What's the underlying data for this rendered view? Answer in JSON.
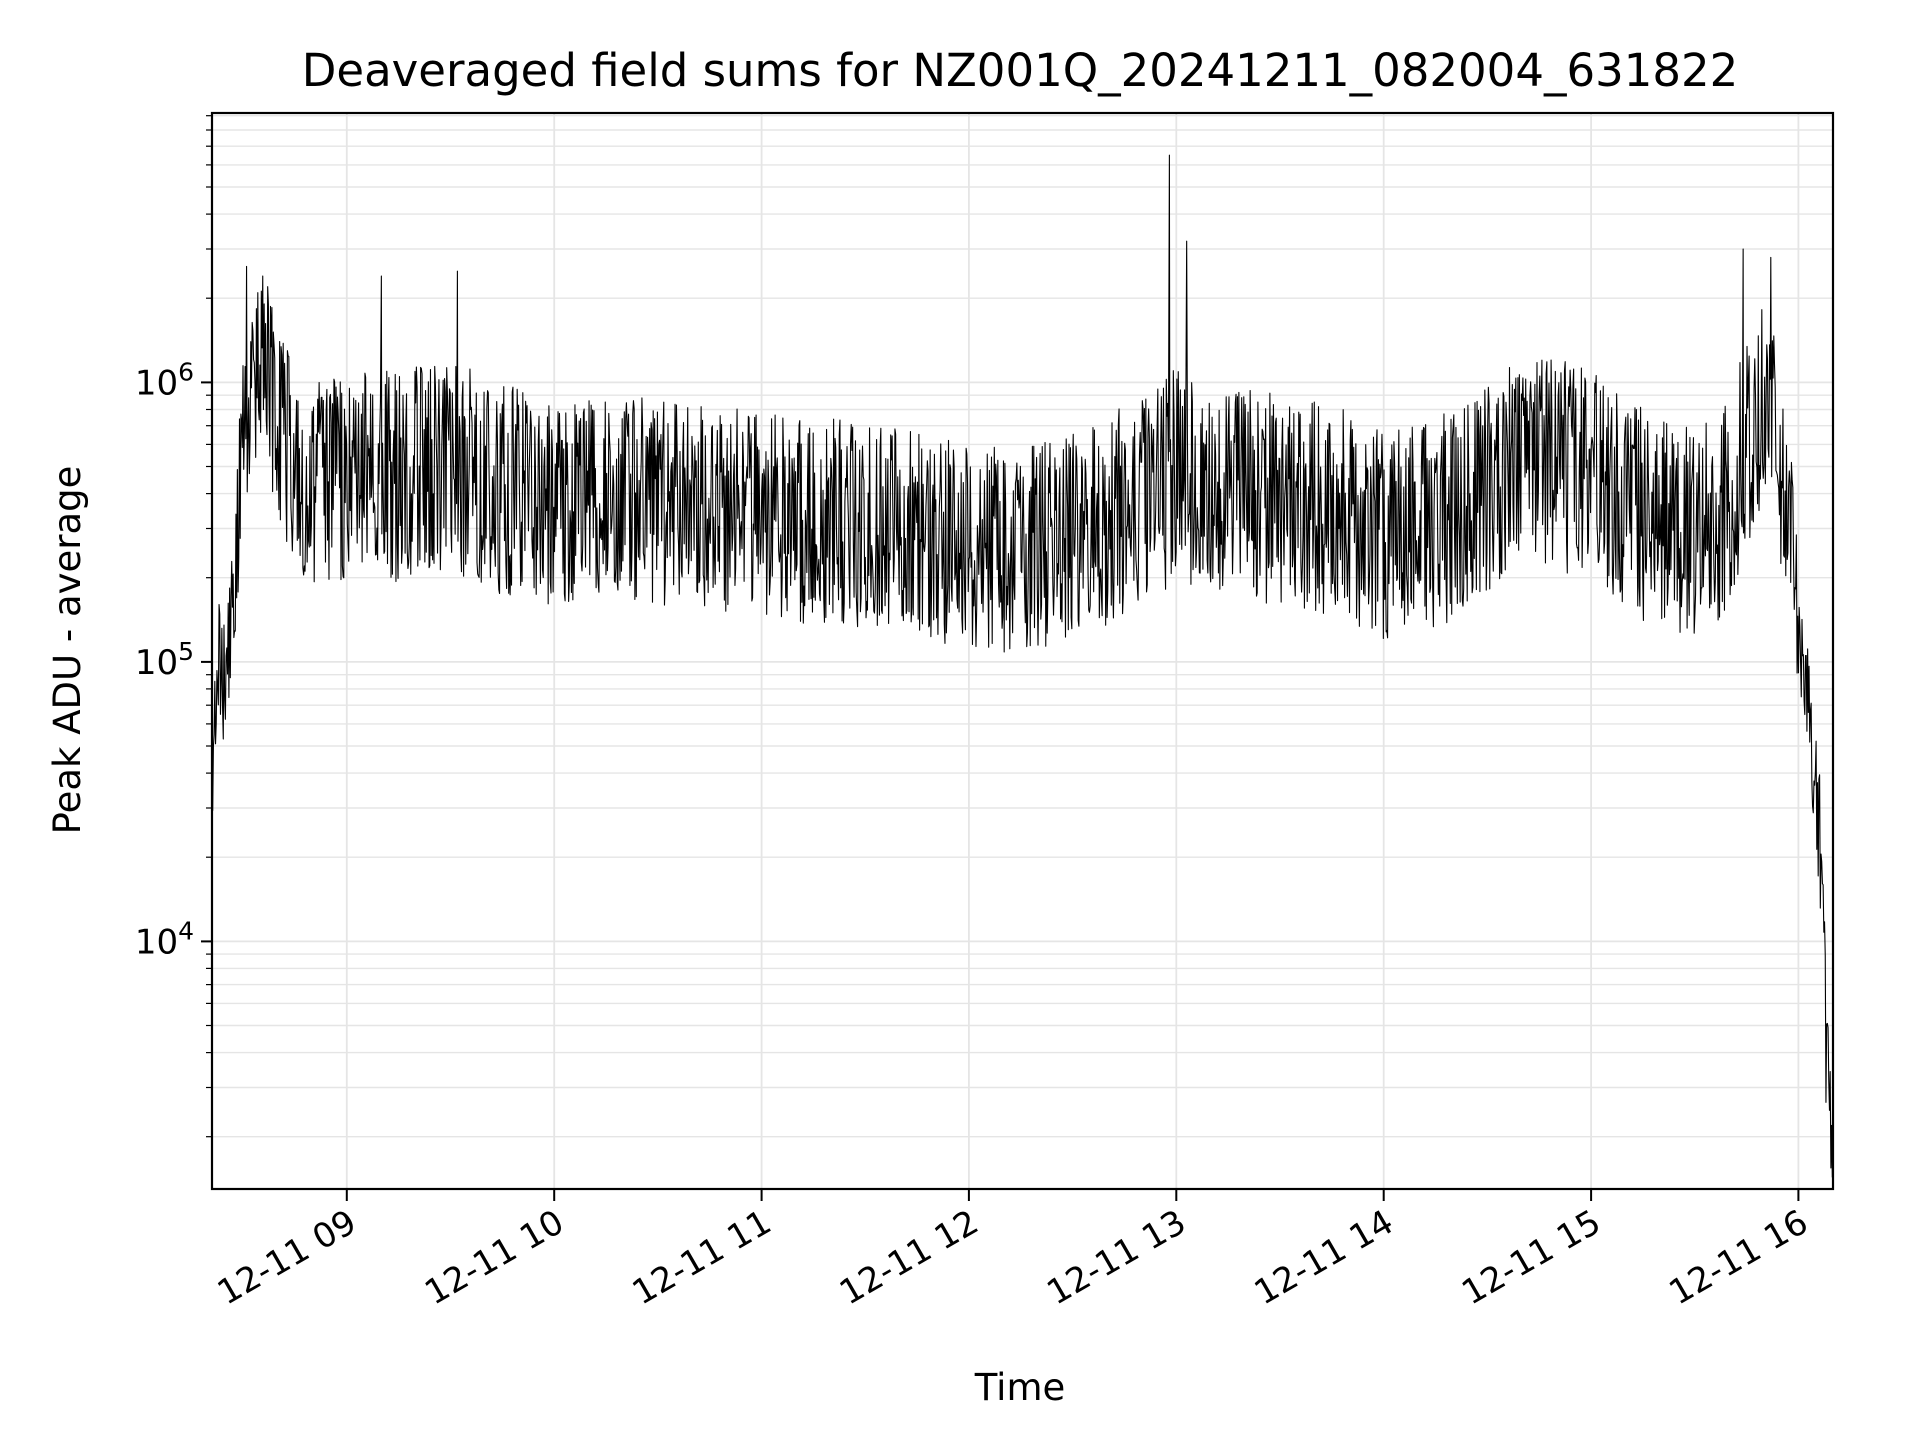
{
  "chart_data": {
    "type": "line",
    "title": "Deaveraged field sums for NZ001Q_20241211_082004_631822",
    "xlabel": "Time",
    "ylabel": "Peak ADU - average",
    "yscale": "log",
    "ylim": [
      1300,
      9200000
    ],
    "xlim": [
      "2024-12-11 08:21",
      "2024-12-11 16:10"
    ],
    "grid": true,
    "line_color": "#000000",
    "grid_color": "#e5e5e5",
    "x_ticks": [
      {
        "value": "2024-12-11 09:00",
        "label": "12-11 09"
      },
      {
        "value": "2024-12-11 10:00",
        "label": "12-11 10"
      },
      {
        "value": "2024-12-11 11:00",
        "label": "12-11 11"
      },
      {
        "value": "2024-12-11 12:00",
        "label": "12-11 12"
      },
      {
        "value": "2024-12-11 13:00",
        "label": "12-11 13"
      },
      {
        "value": "2024-12-11 14:00",
        "label": "12-11 14"
      },
      {
        "value": "2024-12-11 15:00",
        "label": "12-11 15"
      },
      {
        "value": "2024-12-11 16:00",
        "label": "12-11 16"
      }
    ],
    "y_ticks": [
      {
        "value": 10000,
        "base": "10",
        "exp": "4"
      },
      {
        "value": 100000,
        "base": "10",
        "exp": "5"
      },
      {
        "value": 1000000,
        "base": "10",
        "exp": "6"
      }
    ],
    "series": [
      {
        "x": [
          "2024-12-11 08:21",
          "2024-12-11 08:23",
          "2024-12-11 08:25",
          "2024-12-11 08:27",
          "2024-12-11 08:30",
          "2024-12-11 08:33",
          "2024-12-11 08:36",
          "2024-12-11 08:40",
          "2024-12-11 08:45",
          "2024-12-11 08:50",
          "2024-12-11 09:00",
          "2024-12-11 09:15",
          "2024-12-11 09:30",
          "2024-12-11 09:45",
          "2024-12-11 10:00",
          "2024-12-11 10:15",
          "2024-12-11 10:30",
          "2024-12-11 10:45",
          "2024-12-11 11:00",
          "2024-12-11 11:15",
          "2024-12-11 11:30",
          "2024-12-11 11:45",
          "2024-12-11 12:00",
          "2024-12-11 12:15",
          "2024-12-11 12:30",
          "2024-12-11 12:45",
          "2024-12-11 13:00",
          "2024-12-11 13:15",
          "2024-12-11 13:30",
          "2024-12-11 13:45",
          "2024-12-11 14:00",
          "2024-12-11 14:15",
          "2024-12-11 14:30",
          "2024-12-11 14:45",
          "2024-12-11 15:00",
          "2024-12-11 15:15",
          "2024-12-11 15:30",
          "2024-12-11 15:40",
          "2024-12-11 15:45",
          "2024-12-11 15:50",
          "2024-12-11 15:55",
          "2024-12-11 15:58",
          "2024-12-11 16:00",
          "2024-12-11 16:03",
          "2024-12-11 16:06",
          "2024-12-11 16:08",
          "2024-12-11 16:10"
        ],
        "y": [
          40000,
          100000,
          80000,
          150000,
          700000,
          1100000,
          1300000,
          800000,
          550000,
          450000,
          450000,
          480000,
          520000,
          430000,
          380000,
          420000,
          400000,
          380000,
          360000,
          340000,
          330000,
          300000,
          280000,
          260000,
          300000,
          360000,
          480000,
          420000,
          380000,
          350000,
          300000,
          320000,
          450000,
          560000,
          480000,
          350000,
          300000,
          380000,
          650000,
          900000,
          500000,
          350000,
          120000,
          70000,
          30000,
          5000,
          2000
        ],
        "lo_env": [
          0.6,
          0.6,
          0.6,
          0.6,
          0.45,
          0.4,
          0.4,
          0.4,
          0.4,
          0.4,
          0.4,
          0.4,
          0.4,
          0.4,
          0.42,
          0.42,
          0.4,
          0.4,
          0.4,
          0.4,
          0.4,
          0.4,
          0.4,
          0.4,
          0.4,
          0.4,
          0.4,
          0.4,
          0.4,
          0.4,
          0.4,
          0.4,
          0.4,
          0.4,
          0.4,
          0.4,
          0.4,
          0.4,
          0.4,
          0.4,
          0.4,
          0.5,
          0.6,
          0.6,
          0.5,
          0.5,
          0.6
        ],
        "hi_env": [
          1.7,
          1.8,
          1.8,
          1.8,
          2.0,
          2.0,
          2.0,
          2.2,
          2.2,
          2.2,
          2.4,
          2.4,
          2.4,
          2.4,
          2.2,
          2.2,
          2.2,
          2.2,
          2.2,
          2.2,
          2.2,
          2.2,
          2.2,
          2.2,
          2.2,
          2.3,
          2.4,
          2.4,
          2.4,
          2.4,
          2.3,
          2.3,
          2.3,
          2.3,
          2.3,
          2.3,
          2.3,
          2.4,
          2.4,
          2.4,
          2.2,
          2.0,
          1.8,
          1.6,
          1.6,
          1.6,
          1.5
        ]
      }
    ],
    "spikes": [
      {
        "x": "2024-12-11 12:58",
        "y": 6500000
      },
      {
        "x": "2024-12-11 13:03",
        "y": 3200000
      },
      {
        "x": "2024-12-11 15:44",
        "y": 3000000
      },
      {
        "x": "2024-12-11 15:52",
        "y": 2800000
      },
      {
        "x": "2024-12-11 08:31",
        "y": 2600000
      },
      {
        "x": "2024-12-11 09:32",
        "y": 2500000
      },
      {
        "x": "2024-12-11 09:10",
        "y": 2400000
      }
    ]
  }
}
